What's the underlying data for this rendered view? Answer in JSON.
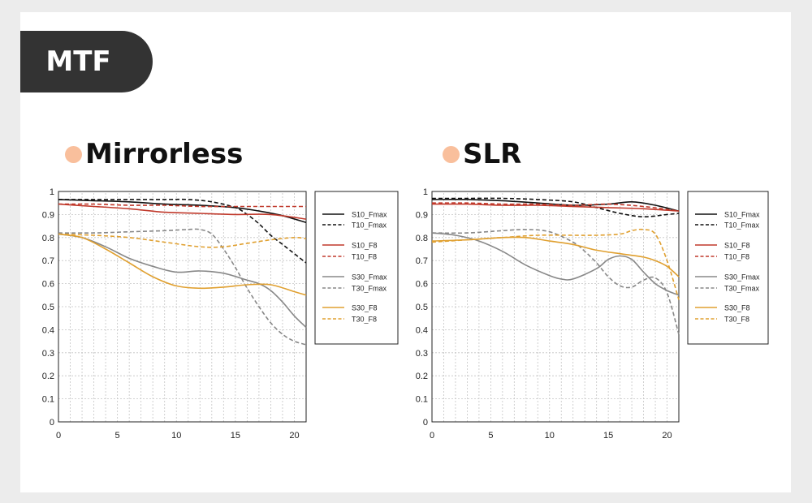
{
  "badge": {
    "label": "MTF"
  },
  "colors": {
    "accent_dot": "#f9bf9c",
    "badge_bg": "#333333",
    "card_bg": "#ffffff",
    "page_bg": "#ececec"
  },
  "panels": [
    {
      "heading": "Mirrorless"
    },
    {
      "heading": "SLR"
    }
  ],
  "chart_data": [
    {
      "type": "line",
      "title": "Mirrorless",
      "xlabel": "",
      "ylabel": "",
      "xlim": [
        0,
        21
      ],
      "ylim": [
        0,
        1
      ],
      "xticks": [
        0,
        5,
        10,
        15,
        20
      ],
      "yticks": [
        0,
        0.1,
        0.2,
        0.3,
        0.4,
        0.5,
        0.6,
        0.7,
        0.8,
        0.9,
        1
      ],
      "ytick_labels": [
        "0",
        "0.1",
        "0.2",
        "0.3",
        "0.4",
        "0.5",
        "0.6",
        "0.7",
        "0.8",
        "0.9",
        "1"
      ],
      "grid": true,
      "legend": "right",
      "series": [
        {
          "name": "S10_Fmax",
          "color": "#111111",
          "dash": "solid",
          "x": [
            0,
            3,
            6,
            9,
            12,
            15,
            17,
            19,
            21
          ],
          "y": [
            0.965,
            0.96,
            0.955,
            0.945,
            0.94,
            0.93,
            0.915,
            0.895,
            0.865
          ]
        },
        {
          "name": "T10_Fmax",
          "color": "#111111",
          "dash": "dashed",
          "x": [
            0,
            3,
            6,
            9,
            11,
            13,
            15,
            16,
            17,
            18,
            19,
            20,
            21
          ],
          "y": [
            0.965,
            0.965,
            0.965,
            0.965,
            0.965,
            0.955,
            0.93,
            0.9,
            0.86,
            0.81,
            0.77,
            0.73,
            0.69
          ]
        },
        {
          "name": "S10_F8",
          "color": "#c0392b",
          "dash": "solid",
          "x": [
            0,
            3,
            6,
            9,
            12,
            15,
            18,
            21
          ],
          "y": [
            0.945,
            0.935,
            0.925,
            0.91,
            0.905,
            0.9,
            0.9,
            0.88
          ]
        },
        {
          "name": "T10_F8",
          "color": "#c0392b",
          "dash": "dashed",
          "x": [
            0,
            3,
            6,
            9,
            12,
            15,
            18,
            21
          ],
          "y": [
            0.945,
            0.945,
            0.94,
            0.94,
            0.935,
            0.935,
            0.935,
            0.935
          ]
        },
        {
          "name": "S30_Fmax",
          "color": "#888888",
          "dash": "solid",
          "x": [
            0,
            2,
            4,
            6,
            8,
            10,
            12,
            14,
            16,
            17,
            18,
            19,
            20,
            21
          ],
          "y": [
            0.815,
            0.8,
            0.76,
            0.71,
            0.675,
            0.65,
            0.655,
            0.645,
            0.615,
            0.6,
            0.57,
            0.52,
            0.46,
            0.41
          ]
        },
        {
          "name": "T30_Fmax",
          "color": "#888888",
          "dash": "dashed",
          "x": [
            0,
            3,
            6,
            9,
            11,
            12,
            13,
            14,
            15,
            16,
            17,
            18,
            19,
            20,
            21
          ],
          "y": [
            0.82,
            0.82,
            0.825,
            0.83,
            0.835,
            0.835,
            0.815,
            0.75,
            0.67,
            0.58,
            0.5,
            0.43,
            0.38,
            0.35,
            0.335
          ]
        },
        {
          "name": "S30_F8",
          "color": "#e0a030",
          "dash": "solid",
          "x": [
            0,
            2,
            4,
            6,
            8,
            10,
            12,
            14,
            16,
            18,
            20,
            21
          ],
          "y": [
            0.815,
            0.8,
            0.75,
            0.69,
            0.63,
            0.59,
            0.58,
            0.585,
            0.595,
            0.595,
            0.565,
            0.55
          ]
        },
        {
          "name": "T30_F8",
          "color": "#e0a030",
          "dash": "dashed",
          "x": [
            0,
            3,
            6,
            9,
            12,
            14,
            16,
            18,
            20,
            21
          ],
          "y": [
            0.815,
            0.81,
            0.8,
            0.78,
            0.76,
            0.76,
            0.775,
            0.79,
            0.8,
            0.795
          ]
        }
      ]
    },
    {
      "type": "line",
      "title": "SLR",
      "xlabel": "",
      "ylabel": "",
      "xlim": [
        0,
        21
      ],
      "ylim": [
        0,
        1
      ],
      "xticks": [
        0,
        5,
        10,
        15,
        20
      ],
      "yticks": [
        0,
        0.1,
        0.2,
        0.3,
        0.4,
        0.5,
        0.6,
        0.7,
        0.8,
        0.9,
        1
      ],
      "ytick_labels": [
        "0",
        "0.1",
        "0.2",
        "0.3",
        "0.4",
        "0.5",
        "0.6",
        "0.7",
        "0.8",
        "0.9",
        "1"
      ],
      "grid": true,
      "legend": "right",
      "series": [
        {
          "name": "S10_Fmax",
          "color": "#111111",
          "dash": "solid",
          "x": [
            0,
            3,
            6,
            9,
            12,
            15,
            17,
            19,
            21
          ],
          "y": [
            0.965,
            0.965,
            0.96,
            0.95,
            0.94,
            0.945,
            0.955,
            0.94,
            0.915
          ]
        },
        {
          "name": "T10_Fmax",
          "color": "#111111",
          "dash": "dashed",
          "x": [
            0,
            3,
            6,
            9,
            12,
            14,
            16,
            18,
            20,
            21
          ],
          "y": [
            0.97,
            0.97,
            0.97,
            0.965,
            0.955,
            0.93,
            0.905,
            0.89,
            0.9,
            0.905
          ]
        },
        {
          "name": "S10_F8",
          "color": "#c0392b",
          "dash": "solid",
          "x": [
            0,
            3,
            6,
            9,
            12,
            15,
            18,
            21
          ],
          "y": [
            0.945,
            0.945,
            0.94,
            0.94,
            0.935,
            0.93,
            0.925,
            0.915
          ]
        },
        {
          "name": "T10_F8",
          "color": "#c0392b",
          "dash": "dashed",
          "x": [
            0,
            3,
            6,
            9,
            12,
            15,
            18,
            21
          ],
          "y": [
            0.95,
            0.95,
            0.945,
            0.945,
            0.94,
            0.945,
            0.935,
            0.915
          ]
        },
        {
          "name": "S30_Fmax",
          "color": "#888888",
          "dash": "solid",
          "x": [
            0,
            2,
            4,
            6,
            8,
            10,
            11,
            12,
            14,
            15,
            16,
            17,
            18,
            19,
            20,
            21
          ],
          "y": [
            0.82,
            0.81,
            0.785,
            0.74,
            0.68,
            0.635,
            0.62,
            0.62,
            0.665,
            0.705,
            0.72,
            0.705,
            0.65,
            0.6,
            0.57,
            0.55
          ]
        },
        {
          "name": "T30_Fmax",
          "color": "#888888",
          "dash": "dashed",
          "x": [
            0,
            3,
            6,
            8,
            10,
            12,
            13,
            14,
            15,
            16,
            17,
            18,
            19,
            20,
            21
          ],
          "y": [
            0.82,
            0.82,
            0.83,
            0.835,
            0.825,
            0.78,
            0.74,
            0.69,
            0.63,
            0.59,
            0.585,
            0.615,
            0.625,
            0.56,
            0.38
          ]
        },
        {
          "name": "S30_F8",
          "color": "#e0a030",
          "dash": "solid",
          "x": [
            0,
            3,
            6,
            8,
            10,
            12,
            14,
            16,
            18,
            19,
            20,
            21
          ],
          "y": [
            0.785,
            0.79,
            0.8,
            0.8,
            0.785,
            0.77,
            0.745,
            0.73,
            0.715,
            0.7,
            0.675,
            0.63
          ]
        },
        {
          "name": "T30_F8",
          "color": "#e0a030",
          "dash": "dashed",
          "x": [
            0,
            3,
            6,
            9,
            12,
            14,
            16,
            17,
            18,
            19,
            20,
            21
          ],
          "y": [
            0.78,
            0.79,
            0.8,
            0.81,
            0.81,
            0.81,
            0.815,
            0.83,
            0.835,
            0.815,
            0.7,
            0.53
          ]
        }
      ]
    }
  ]
}
